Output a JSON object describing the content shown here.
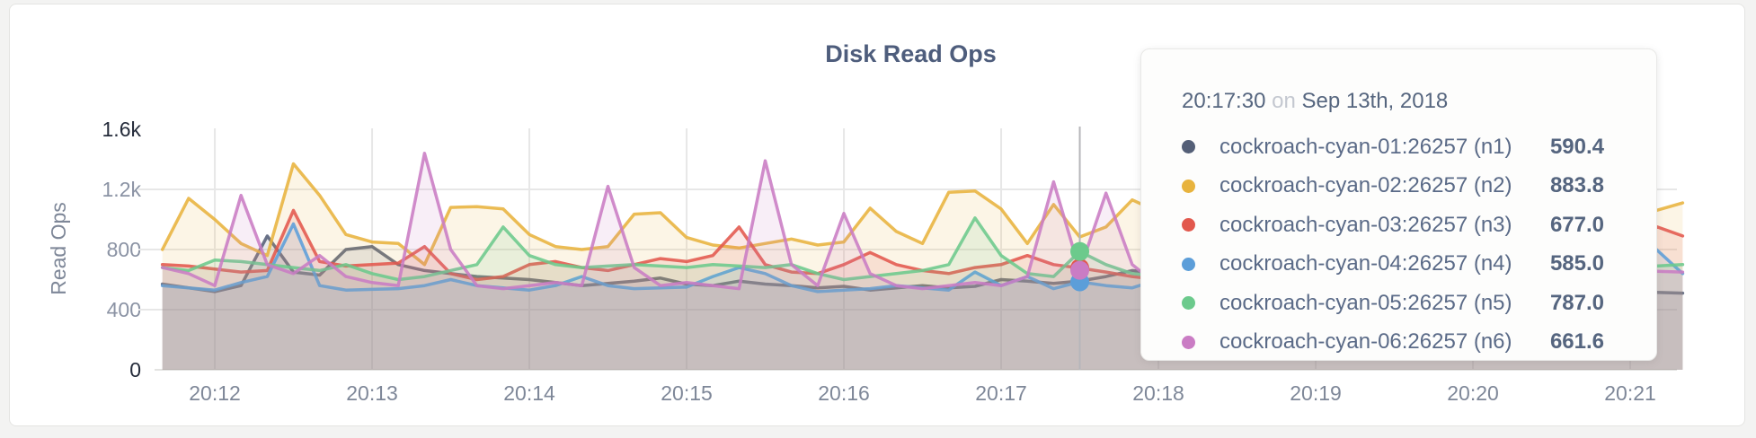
{
  "window": {
    "background_color": "#f3f3f2"
  },
  "panel": {
    "title": "Disk Read Ops",
    "background_color": "#ffffff"
  },
  "tooltip": {
    "time": "20:17:30",
    "preposition": "on",
    "date": "Sep 13th, 2018",
    "rows": [
      {
        "series_id": "n1",
        "label": "cockroach-cyan-01:26257 (n1)",
        "value": "590.4"
      },
      {
        "series_id": "n2",
        "label": "cockroach-cyan-02:26257 (n2)",
        "value": "883.8"
      },
      {
        "series_id": "n3",
        "label": "cockroach-cyan-03:26257 (n3)",
        "value": "677.0"
      },
      {
        "series_id": "n4",
        "label": "cockroach-cyan-04:26257 (n4)",
        "value": "585.0"
      },
      {
        "series_id": "n5",
        "label": "cockroach-cyan-05:26257 (n5)",
        "value": "787.0"
      },
      {
        "series_id": "n6",
        "label": "cockroach-cyan-06:26257 (n6)",
        "value": "661.6"
      }
    ]
  },
  "chart_data": {
    "type": "area",
    "title": "Disk Read Ops",
    "xlabel": "",
    "ylabel": "Read Ops",
    "ylim": [
      0,
      1600
    ],
    "grid": true,
    "x_start": "20:11:40",
    "x_interval_seconds": 10,
    "x_ticks": [
      {
        "label": "20:12",
        "index": 2
      },
      {
        "label": "20:13",
        "index": 8
      },
      {
        "label": "20:14",
        "index": 14
      },
      {
        "label": "20:15",
        "index": 20
      },
      {
        "label": "20:16",
        "index": 26
      },
      {
        "label": "20:17",
        "index": 32
      },
      {
        "label": "20:18",
        "index": 38
      },
      {
        "label": "20:19",
        "index": 44
      },
      {
        "label": "20:20",
        "index": 50
      },
      {
        "label": "20:21",
        "index": 56
      }
    ],
    "y_ticks": [
      {
        "label": "1.6k",
        "value": 1600,
        "emphasized": true,
        "gridline": false
      },
      {
        "label": "1.2k",
        "value": 1200,
        "emphasized": false,
        "gridline": true
      },
      {
        "label": "800",
        "value": 800,
        "emphasized": false,
        "gridline": true
      },
      {
        "label": "400",
        "value": 400,
        "emphasized": false,
        "gridline": true
      },
      {
        "label": "0",
        "value": 0,
        "emphasized": true,
        "gridline": false
      }
    ],
    "hover": {
      "time": "20:17:30",
      "index": 35,
      "dot_series": [
        "n3",
        "n5",
        "n4",
        "n6"
      ]
    },
    "series": [
      {
        "id": "n1",
        "name": "cockroach-cyan-01:26257 (n1)",
        "color": "#545f77",
        "values": [
          570,
          545,
          520,
          560,
          890,
          650,
          630,
          800,
          820,
          700,
          660,
          640,
          620,
          610,
          600,
          580,
          560,
          575,
          590,
          610,
          570,
          560,
          590,
          570,
          560,
          545,
          555,
          530,
          545,
          560,
          545,
          555,
          600,
          590,
          575,
          590.4,
          620,
          660,
          640,
          620,
          600,
          580,
          560,
          570,
          590,
          610,
          580,
          560,
          540,
          555,
          570,
          585,
          560,
          530,
          545,
          520,
          520,
          515,
          510
        ]
      },
      {
        "id": "n2",
        "name": "cockroach-cyan-02:26257 (n2)",
        "color": "#e8b33d",
        "values": [
          800,
          1140,
          1000,
          840,
          760,
          1370,
          1160,
          900,
          850,
          840,
          700,
          1080,
          1085,
          1070,
          900,
          820,
          800,
          820,
          1035,
          1045,
          880,
          830,
          810,
          840,
          870,
          830,
          850,
          1075,
          920,
          840,
          1180,
          1190,
          1070,
          840,
          1100,
          883.8,
          950,
          1130,
          1050,
          900,
          860,
          1000,
          1100,
          950,
          870,
          820,
          900,
          1050,
          980,
          850,
          900,
          1000,
          950,
          870,
          820,
          900,
          1020,
          1060,
          1110
        ]
      },
      {
        "id": "n3",
        "name": "cockroach-cyan-03:26257 (n3)",
        "color": "#e2584d",
        "values": [
          700,
          690,
          670,
          650,
          660,
          1060,
          720,
          690,
          700,
          710,
          820,
          640,
          600,
          620,
          700,
          720,
          680,
          660,
          700,
          740,
          720,
          760,
          950,
          700,
          650,
          640,
          700,
          780,
          700,
          660,
          640,
          680,
          700,
          760,
          700,
          677,
          650,
          620,
          600,
          650,
          700,
          680,
          650,
          700,
          720,
          680,
          650,
          700,
          680,
          660,
          700,
          680,
          650,
          700,
          720,
          680,
          717,
          952,
          890
        ]
      },
      {
        "id": "n4",
        "name": "cockroach-cyan-04:26257 (n4)",
        "color": "#5c9ed9",
        "values": [
          560,
          545,
          530,
          580,
          620,
          970,
          560,
          530,
          535,
          540,
          560,
          600,
          560,
          545,
          530,
          560,
          620,
          560,
          540,
          545,
          550,
          620,
          680,
          640,
          560,
          520,
          530,
          540,
          560,
          545,
          530,
          650,
          560,
          620,
          540,
          585,
          560,
          545,
          600,
          580,
          560,
          540,
          560,
          580,
          560,
          540,
          560,
          580,
          560,
          540,
          560,
          580,
          560,
          540,
          560,
          580,
          985,
          800,
          640
        ]
      },
      {
        "id": "n5",
        "name": "cockroach-cyan-05:26257 (n5)",
        "color": "#6cca8c",
        "values": [
          680,
          660,
          730,
          720,
          700,
          680,
          660,
          700,
          640,
          600,
          620,
          660,
          700,
          950,
          760,
          700,
          680,
          690,
          700,
          690,
          680,
          700,
          690,
          680,
          700,
          640,
          600,
          620,
          640,
          660,
          700,
          1010,
          760,
          640,
          620,
          787,
          700,
          640,
          620,
          660,
          700,
          680,
          660,
          700,
          680,
          660,
          700,
          680,
          660,
          700,
          680,
          660,
          700,
          680,
          660,
          700,
          700,
          690,
          700
        ]
      },
      {
        "id": "n6",
        "name": "cockroach-cyan-06:26257 (n6)",
        "color": "#ca7cc4",
        "values": [
          680,
          640,
          560,
          1160,
          700,
          640,
          760,
          620,
          580,
          560,
          1440,
          800,
          560,
          540,
          560,
          580,
          560,
          1220,
          680,
          560,
          580,
          560,
          540,
          1390,
          700,
          560,
          1040,
          640,
          560,
          540,
          560,
          580,
          560,
          620,
          1250,
          661.6,
          1175,
          700,
          560,
          580,
          560,
          540,
          560,
          580,
          560,
          540,
          560,
          580,
          560,
          540,
          560,
          580,
          560,
          540,
          560,
          580,
          660,
          655,
          650
        ]
      }
    ],
    "style": {
      "gridline_color": "#e7e7e7",
      "baseline_color": "#e3e3e1",
      "hover_line_color": "#b6b6ba",
      "fill_opacity": 0.13,
      "line_opacity": 0.88
    }
  }
}
